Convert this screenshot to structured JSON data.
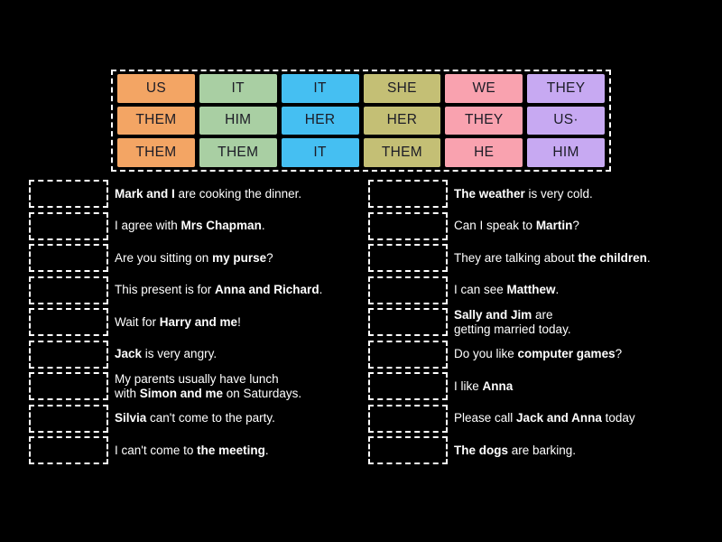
{
  "ui": {
    "background_color": "#000000",
    "sentence_text_color": "#ffffff",
    "slot_border_color": "#ffffff",
    "tile_text_color": "#1c1c26"
  },
  "tile_grid": {
    "columns": 6,
    "column_colors": [
      "#f3a564",
      "#a9cfa3",
      "#45bff2",
      "#c4bf75",
      "#f9a2af",
      "#c7a9f2"
    ],
    "rows": [
      [
        "US",
        "IT",
        "IT",
        "SHE",
        "WE",
        "THEY"
      ],
      [
        "THEM",
        "HIM",
        "HER",
        "HER",
        "THEY",
        "US·"
      ],
      [
        "THEM",
        "THEM",
        "IT",
        "THEM",
        "HE",
        "HIM"
      ]
    ]
  },
  "left_list": [
    {
      "segments": [
        {
          "text": "Mark and I",
          "bold": true
        },
        {
          "text": " are cooking the dinner.",
          "bold": false
        }
      ]
    },
    {
      "segments": [
        {
          "text": "I agree with ",
          "bold": false
        },
        {
          "text": "Mrs Chapman",
          "bold": true
        },
        {
          "text": ".",
          "bold": false
        }
      ]
    },
    {
      "segments": [
        {
          "text": "Are you sitting on ",
          "bold": false
        },
        {
          "text": "my purse",
          "bold": true
        },
        {
          "text": "?",
          "bold": false
        }
      ]
    },
    {
      "segments": [
        {
          "text": "This present is for ",
          "bold": false
        },
        {
          "text": "Anna and Richard",
          "bold": true
        },
        {
          "text": ".",
          "bold": false
        }
      ]
    },
    {
      "segments": [
        {
          "text": "Wait for ",
          "bold": false
        },
        {
          "text": "Harry and me",
          "bold": true
        },
        {
          "text": "!",
          "bold": false
        }
      ]
    },
    {
      "segments": [
        {
          "text": "Jack",
          "bold": true
        },
        {
          "text": " is very angry.",
          "bold": false
        }
      ]
    },
    {
      "segments": [
        {
          "text": "My parents usually have lunch",
          "bold": false,
          "break_after": true
        },
        {
          "text": "with ",
          "bold": false
        },
        {
          "text": "Simon and me",
          "bold": true
        },
        {
          "text": " on Saturdays.",
          "bold": false
        }
      ]
    },
    {
      "segments": [
        {
          "text": "Silvia",
          "bold": true
        },
        {
          "text": " can't come to the party.",
          "bold": false
        }
      ]
    },
    {
      "segments": [
        {
          "text": "I can't come to ",
          "bold": false
        },
        {
          "text": "the meeting",
          "bold": true
        },
        {
          "text": ".",
          "bold": false
        }
      ]
    }
  ],
  "right_list": [
    {
      "segments": [
        {
          "text": "The weather",
          "bold": true
        },
        {
          "text": " is very cold.",
          "bold": false
        }
      ]
    },
    {
      "segments": [
        {
          "text": "Can I speak to ",
          "bold": false
        },
        {
          "text": "Martin",
          "bold": true
        },
        {
          "text": "?",
          "bold": false
        }
      ]
    },
    {
      "segments": [
        {
          "text": "They are talking about ",
          "bold": false
        },
        {
          "text": "the children",
          "bold": true
        },
        {
          "text": ".",
          "bold": false
        }
      ]
    },
    {
      "segments": [
        {
          "text": "I can see ",
          "bold": false
        },
        {
          "text": "Matthew",
          "bold": true
        },
        {
          "text": ".",
          "bold": false
        }
      ]
    },
    {
      "segments": [
        {
          "text": "Sally and Jim",
          "bold": true
        },
        {
          "text": " are",
          "bold": false,
          "break_after": true
        },
        {
          "text": "getting married today.",
          "bold": false
        }
      ]
    },
    {
      "segments": [
        {
          "text": "Do you like ",
          "bold": false
        },
        {
          "text": "computer games",
          "bold": true
        },
        {
          "text": "?",
          "bold": false
        }
      ]
    },
    {
      "segments": [
        {
          "text": "I like ",
          "bold": false
        },
        {
          "text": "Anna",
          "bold": true
        }
      ]
    },
    {
      "segments": [
        {
          "text": "Please call ",
          "bold": false
        },
        {
          "text": "Jack and Anna",
          "bold": true
        },
        {
          "text": " today",
          "bold": false
        }
      ]
    },
    {
      "segments": [
        {
          "text": "The dogs",
          "bold": true
        },
        {
          "text": " are barking.",
          "bold": false
        }
      ]
    }
  ]
}
